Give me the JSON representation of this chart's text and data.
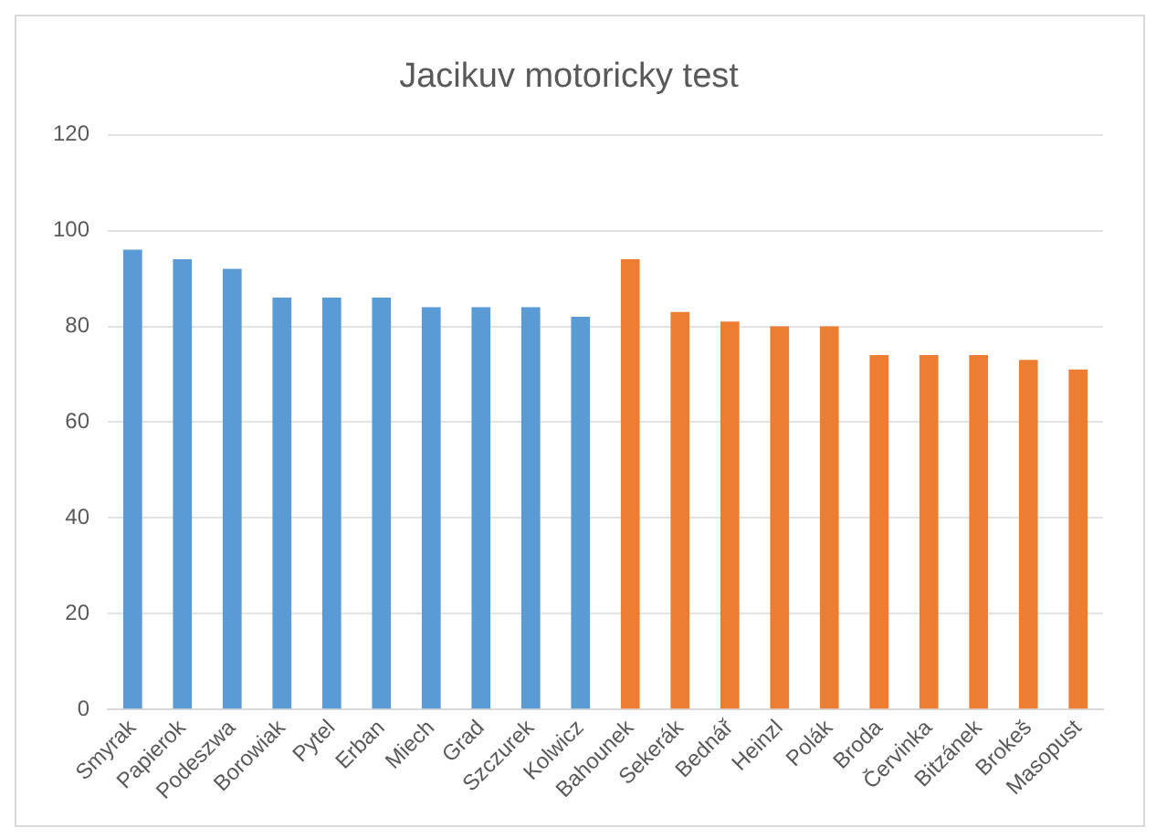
{
  "chart_data": {
    "type": "bar",
    "title": "Jacikuv motoricky test",
    "categories": [
      "Smyrak",
      "Papierok",
      "Podeszwa",
      "Borowiak",
      "Pytel",
      "Erban",
      "Miech",
      "Grad",
      "Szczurek",
      "Kolwicz",
      "Bahounek",
      "Sekerák",
      "Bednář",
      "Heinzl",
      "Polák",
      "Broda",
      "Červinka",
      "Bitzánek",
      "Brokeš",
      "Masopust"
    ],
    "values": [
      96,
      94,
      92,
      86,
      86,
      86,
      84,
      84,
      84,
      82,
      94,
      83,
      81,
      80,
      80,
      74,
      74,
      74,
      73,
      71
    ],
    "colors": [
      "#5b9bd5",
      "#5b9bd5",
      "#5b9bd5",
      "#5b9bd5",
      "#5b9bd5",
      "#5b9bd5",
      "#5b9bd5",
      "#5b9bd5",
      "#5b9bd5",
      "#5b9bd5",
      "#ed7d31",
      "#ed7d31",
      "#ed7d31",
      "#ed7d31",
      "#ed7d31",
      "#ed7d31",
      "#ed7d31",
      "#ed7d31",
      "#ed7d31",
      "#ed7d31"
    ],
    "ylim": [
      0,
      120
    ],
    "yticks": [
      0,
      20,
      40,
      60,
      80,
      100,
      120
    ],
    "grid": "y"
  }
}
